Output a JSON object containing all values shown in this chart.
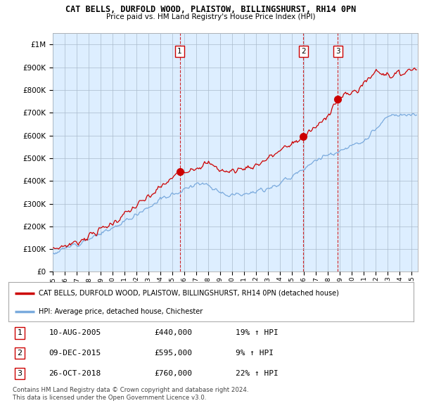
{
  "title": "CAT BELLS, DURFOLD WOOD, PLAISTOW, BILLINGSHURST, RH14 0PN",
  "subtitle": "Price paid vs. HM Land Registry's House Price Index (HPI)",
  "ylim": [
    0,
    1050000
  ],
  "yticks": [
    0,
    100000,
    200000,
    300000,
    400000,
    500000,
    600000,
    700000,
    800000,
    900000,
    1000000
  ],
  "ytick_labels": [
    "£0",
    "£100K",
    "£200K",
    "£300K",
    "£400K",
    "£500K",
    "£600K",
    "£700K",
    "£800K",
    "£900K",
    "£1M"
  ],
  "xlim_start": 1995.0,
  "xlim_end": 2025.5,
  "xlabel_years": [
    1995,
    1996,
    1997,
    1998,
    1999,
    2000,
    2001,
    2002,
    2003,
    2004,
    2005,
    2006,
    2007,
    2008,
    2009,
    2010,
    2011,
    2012,
    2013,
    2014,
    2015,
    2016,
    2017,
    2018,
    2019,
    2020,
    2021,
    2022,
    2023,
    2024,
    2025
  ],
  "sale_dates": [
    2005.61,
    2015.94,
    2018.82
  ],
  "sale_prices": [
    440000,
    595000,
    760000
  ],
  "sale_labels": [
    "1",
    "2",
    "3"
  ],
  "vline_color": "#cc0000",
  "sale_marker_color": "#cc0000",
  "hpi_line_color": "#7aaadd",
  "price_line_color": "#cc0000",
  "chart_bg_color": "#ddeeff",
  "grid_color": "#aabbcc",
  "legend_red_label": "CAT BELLS, DURFOLD WOOD, PLAISTOW, BILLINGSHURST, RH14 0PN (detached house)",
  "legend_blue_label": "HPI: Average price, detached house, Chichester",
  "table_rows": [
    {
      "num": "1",
      "date": "10-AUG-2005",
      "price": "£440,000",
      "hpi": "19% ↑ HPI"
    },
    {
      "num": "2",
      "date": "09-DEC-2015",
      "price": "£595,000",
      "hpi": "9% ↑ HPI"
    },
    {
      "num": "3",
      "date": "26-OCT-2018",
      "price": "£760,000",
      "hpi": "22% ↑ HPI"
    }
  ],
  "footer_line1": "Contains HM Land Registry data © Crown copyright and database right 2024.",
  "footer_line2": "This data is licensed under the Open Government Licence v3.0.",
  "background_color": "#ffffff"
}
